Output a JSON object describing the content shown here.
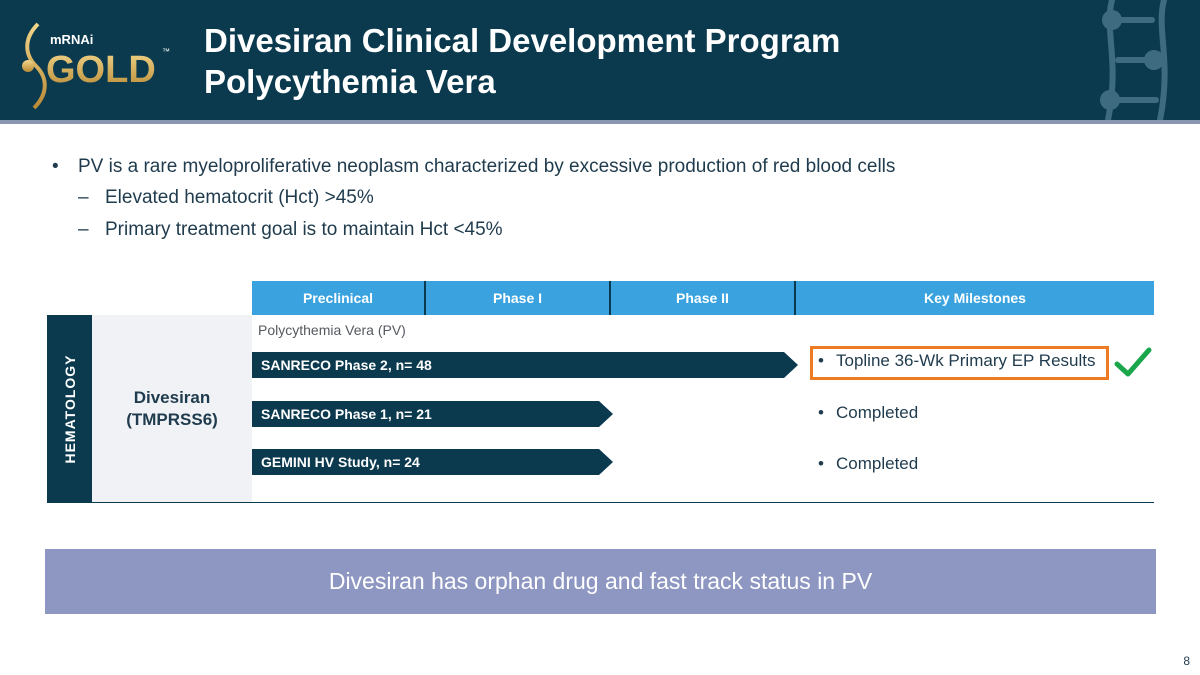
{
  "header": {
    "logo": {
      "small_text": "mRNAi",
      "main_text": "GOLD",
      "mark": "™"
    },
    "title_line1": "Divesiran Clinical Development Program",
    "title_line2": "Polycythemia Vera"
  },
  "bullets": [
    {
      "text": "PV is a rare myeloproliferative neoplasm characterized by excessive production of red blood cells",
      "marker": "•",
      "subs": [
        {
          "text": "Elevated hematocrit (Hct) >45%",
          "marker": "–"
        },
        {
          "text": "Primary treatment goal is to maintain Hct <45%",
          "marker": "–"
        }
      ]
    }
  ],
  "table": {
    "columns": [
      "Preclinical",
      "Phase I",
      "Phase II",
      "Key Milestones"
    ],
    "category": "HEMATOLOGY",
    "drug": "Divesiran\n(TMPRSS6)",
    "indication": "Polycythemia Vera (PV)",
    "programs": [
      {
        "name": "SANRECO Phase 2, n= 48",
        "stage": "Phase II",
        "progress": 1.0,
        "milestone": "Topline 36-Wk Primary EP Results",
        "highlighted": true,
        "checked": true
      },
      {
        "name": "SANRECO Phase 1, n= 21",
        "stage": "Phase I",
        "progress": 1.0,
        "milestone": "Completed",
        "highlighted": false,
        "checked": false
      },
      {
        "name": "GEMINI HV Study, n= 24",
        "stage": "Phase I",
        "progress": 1.0,
        "milestone": "Completed",
        "highlighted": false,
        "checked": false
      }
    ],
    "milestone_marker": "•"
  },
  "banner": "Divesiran has orphan drug and fast track status in PV",
  "page_number": "8",
  "colors": {
    "navy": "#0b3a4f",
    "header_blue": "#3aa3df",
    "highlight_orange": "#ee7a22",
    "check_green": "#1aa64a",
    "banner": "#8e97c2",
    "gold": "#d9b25c"
  },
  "icons": [
    "logo-mark-icon",
    "molecule-decoration-icon",
    "checkmark-icon"
  ]
}
